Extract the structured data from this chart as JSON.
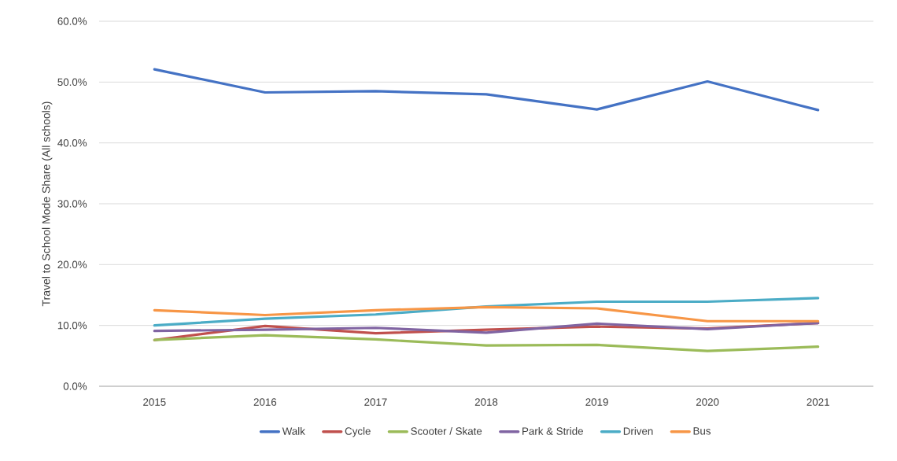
{
  "chart_data": {
    "type": "line",
    "ylabel": "Travel to School Mode Share (All schools)",
    "categories": [
      "2015",
      "2016",
      "2017",
      "2018",
      "2019",
      "2020",
      "2021"
    ],
    "series": [
      {
        "name": "Walk",
        "color": "#4472c4",
        "values": [
          52.1,
          48.3,
          48.5,
          48.0,
          45.5,
          50.1,
          45.4
        ]
      },
      {
        "name": "Cycle",
        "color": "#c0504d",
        "values": [
          7.6,
          9.9,
          8.7,
          9.3,
          9.8,
          9.5,
          10.4
        ]
      },
      {
        "name": "Scooter / Skate",
        "color": "#9bbb59",
        "values": [
          7.6,
          8.4,
          7.7,
          6.7,
          6.8,
          5.8,
          6.5
        ]
      },
      {
        "name": "Park & Stride",
        "color": "#8064a2",
        "values": [
          9.1,
          9.3,
          9.6,
          8.8,
          10.3,
          9.4,
          10.4
        ]
      },
      {
        "name": "Driven",
        "color": "#4bacc6",
        "values": [
          10.0,
          11.1,
          11.8,
          13.1,
          13.9,
          13.9,
          14.5
        ]
      },
      {
        "name": "Bus",
        "color": "#f79646",
        "values": [
          12.5,
          11.7,
          12.5,
          13.0,
          12.8,
          10.7,
          10.7
        ]
      }
    ],
    "ylim": [
      0,
      60
    ],
    "yticks": [
      {
        "value": 0,
        "label": "0.0%"
      },
      {
        "value": 10,
        "label": "10.0%"
      },
      {
        "value": 20,
        "label": "20.0%"
      },
      {
        "value": 30,
        "label": "30.0%"
      },
      {
        "value": 40,
        "label": "40.0%"
      },
      {
        "value": 50,
        "label": "50.0%"
      },
      {
        "value": 60,
        "label": "60.0%"
      }
    ],
    "grid": "y",
    "legend": "bottom",
    "marker": "none",
    "line_style": "solid"
  }
}
